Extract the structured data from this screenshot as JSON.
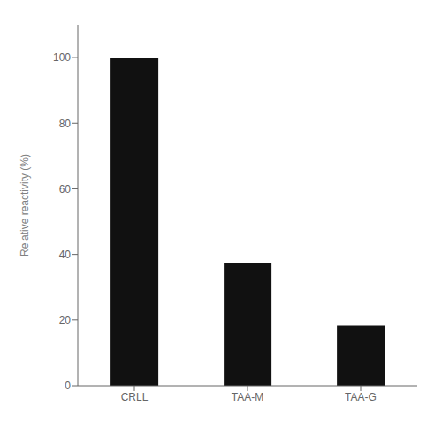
{
  "chart_data": {
    "type": "bar",
    "categories": [
      "CRLL",
      "TAA-M",
      "TAA-G"
    ],
    "values": [
      100,
      37.5,
      18.5
    ],
    "color": "#111111",
    "ylabel": "Relative reactivity (%)",
    "ylim": [
      0,
      110
    ],
    "yticks": [
      0,
      20,
      40,
      60,
      80,
      100
    ],
    "grid": false
  }
}
